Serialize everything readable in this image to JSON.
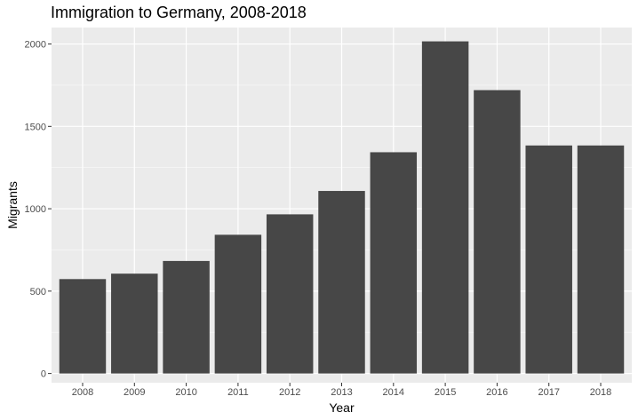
{
  "chart_data": {
    "type": "bar",
    "title": "Immigration to Germany, 2008-2018",
    "xlabel": "Year",
    "ylabel": "Migrants",
    "categories": [
      "2008",
      "2009",
      "2010",
      "2011",
      "2012",
      "2013",
      "2014",
      "2015",
      "2016",
      "2017",
      "2018"
    ],
    "values": [
      573,
      606,
      683,
      842,
      966,
      1108,
      1343,
      2016,
      1720,
      1384,
      1384
    ],
    "yticks": [
      0,
      500,
      1000,
      1500,
      2000
    ],
    "ylim": [
      -56,
      2100
    ],
    "grid": true,
    "legend": "none",
    "colors": {
      "bar": "#474747",
      "panel": "#ebebeb",
      "grid_major": "#ffffff",
      "text": "#4d4d4d",
      "axis_title": "#000000"
    }
  }
}
